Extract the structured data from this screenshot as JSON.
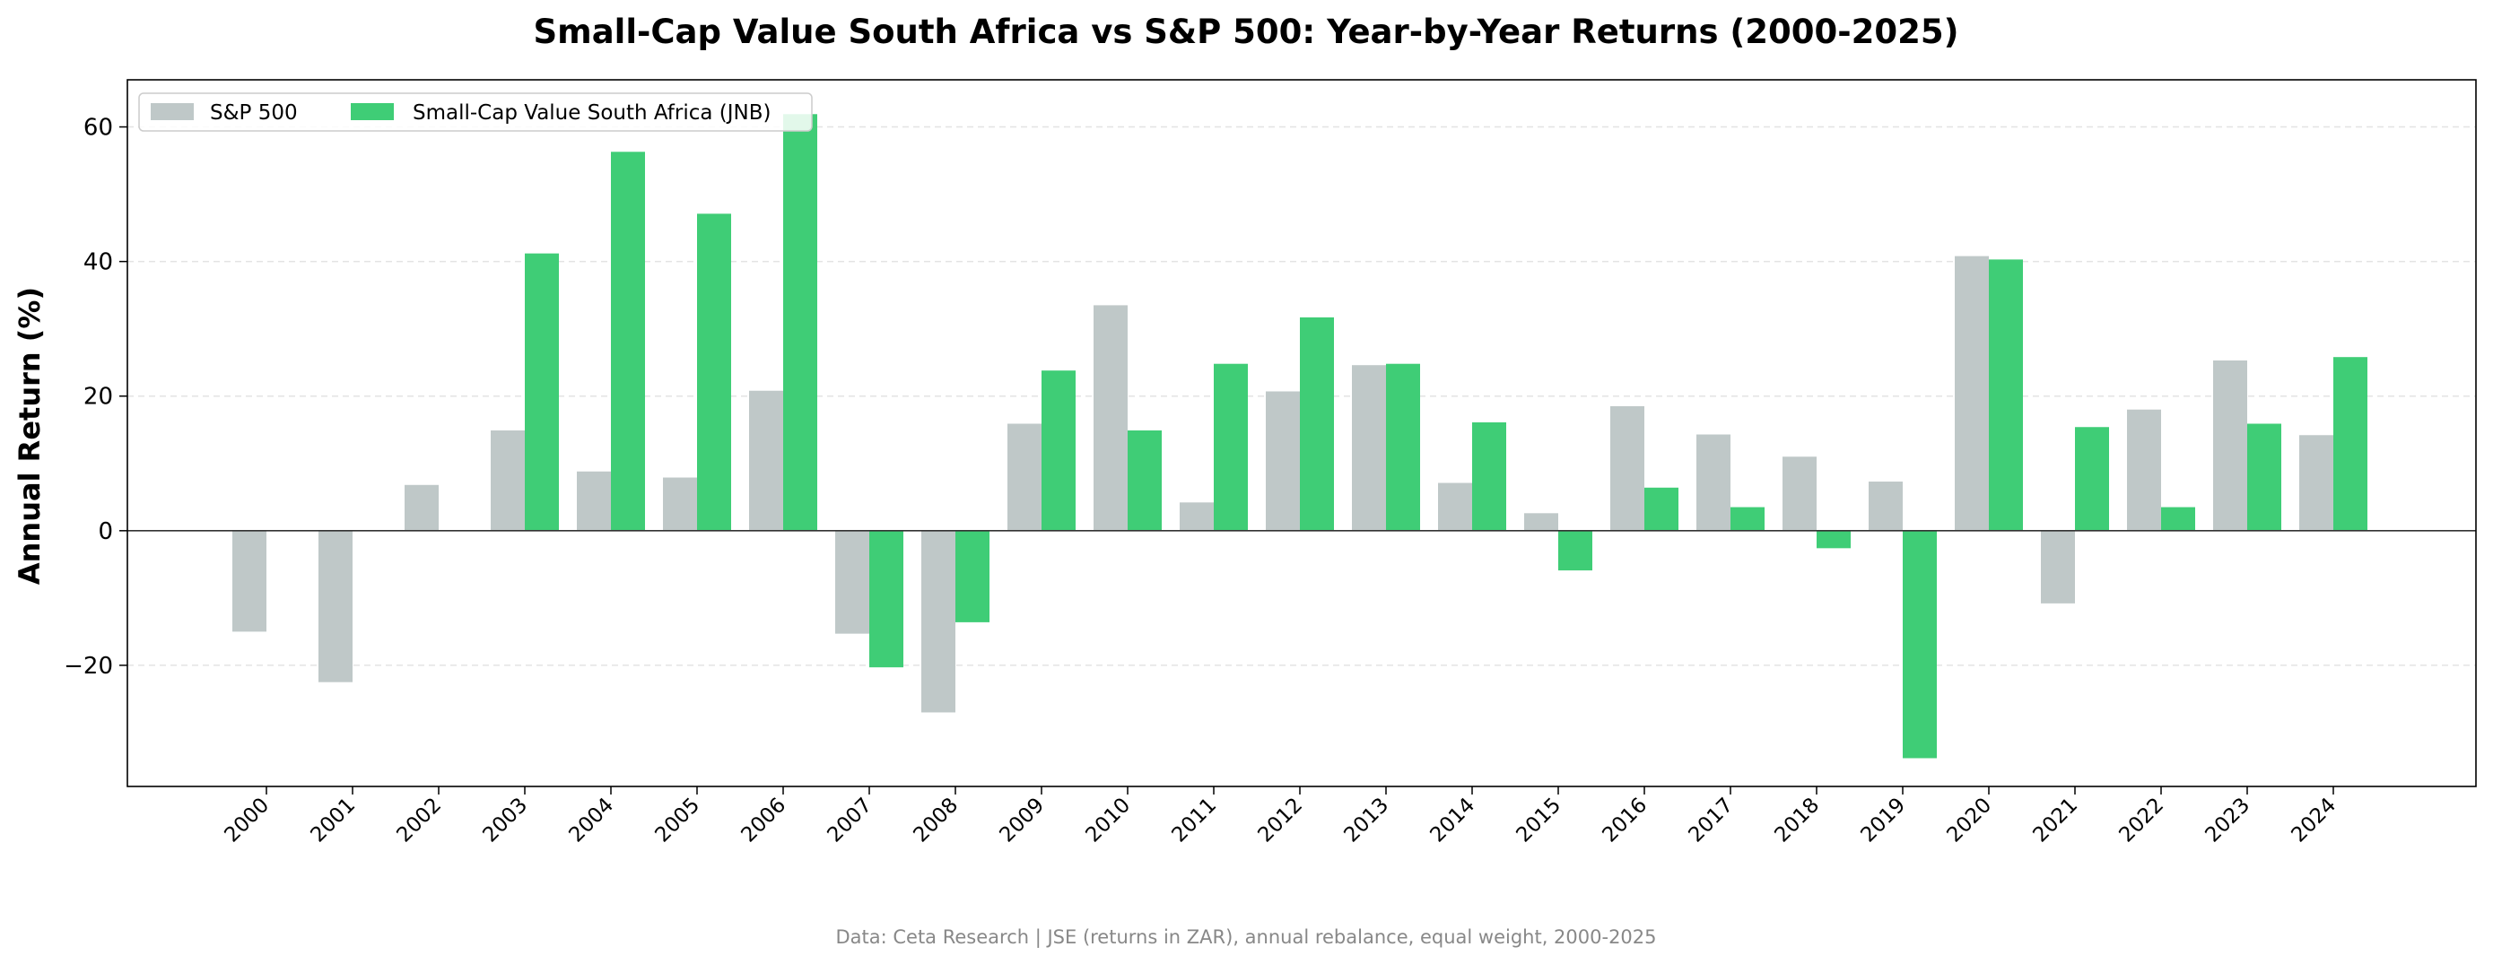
{
  "chart_data": {
    "type": "bar",
    "title": "Small-Cap Value South Africa vs S&P 500: Year-by-Year Returns (2000-2025)",
    "xlabel": "",
    "ylabel": "Annual Return (%)",
    "ylim": [
      -38,
      67
    ],
    "yticks": [
      60,
      40,
      20,
      0,
      -20
    ],
    "ytick_labels": [
      "60",
      "40",
      "20",
      "0",
      "−20"
    ],
    "grid": "horizontal dashed",
    "legend_position": "top-left",
    "categories": [
      "2000",
      "2001",
      "2002",
      "2003",
      "2004",
      "2005",
      "2006",
      "2007",
      "2008",
      "2009",
      "2010",
      "2011",
      "2012",
      "2013",
      "2014",
      "2015",
      "2016",
      "2017",
      "2018",
      "2019",
      "2020",
      "2021",
      "2022",
      "2023",
      "2024"
    ],
    "series": [
      {
        "name": "S&P 500",
        "color": "#bfc8c8",
        "values": [
          -15.0,
          -22.5,
          6.8,
          14.9,
          8.8,
          7.9,
          20.8,
          -15.3,
          -27.0,
          15.9,
          33.5,
          4.2,
          20.7,
          24.6,
          7.1,
          2.6,
          18.5,
          14.3,
          11.0,
          7.3,
          40.8,
          -10.8,
          18.0,
          25.3,
          14.2
        ]
      },
      {
        "name": "Small-Cap Value South Africa (JNB)",
        "color": "#3fcd76",
        "values": [
          null,
          null,
          null,
          41.2,
          56.3,
          47.1,
          61.9,
          -20.3,
          -13.6,
          23.8,
          14.9,
          24.8,
          31.7,
          24.8,
          16.1,
          -5.9,
          6.4,
          3.5,
          -2.6,
          -33.8,
          40.3,
          15.4,
          3.5,
          15.9,
          25.8
        ]
      }
    ],
    "note": "Data: Ceta Research | JSE (returns in ZAR), annual rebalance, equal weight, 2000-2025"
  }
}
